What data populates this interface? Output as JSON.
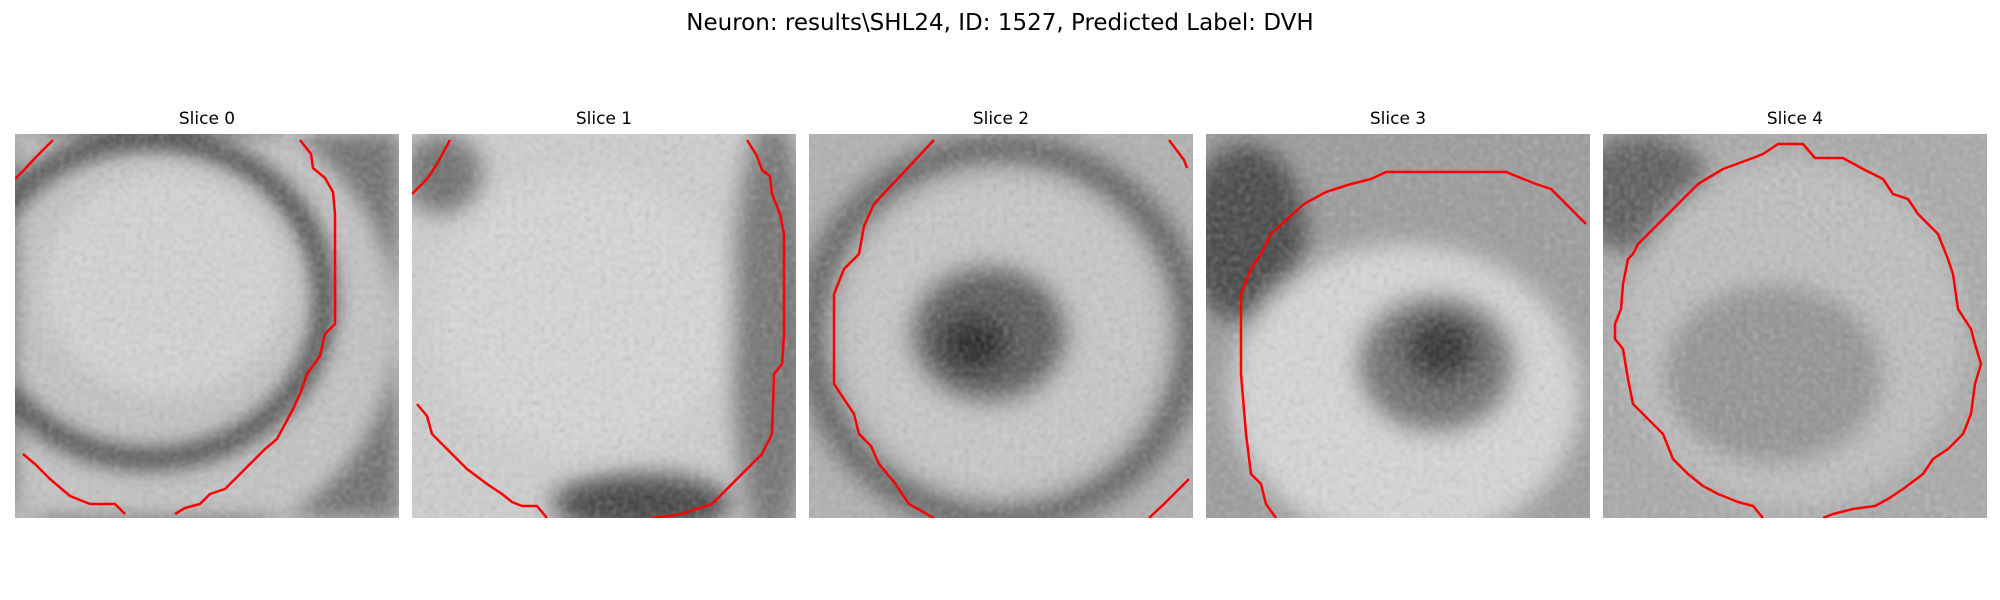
{
  "figure": {
    "title": "Neuron: results\\SHL24, ID: 1527, Predicted Label: DVH"
  },
  "panels": [
    {
      "title": "Slice 0"
    },
    {
      "title": "Slice 1"
    },
    {
      "title": "Slice 2"
    },
    {
      "title": "Slice 3"
    },
    {
      "title": "Slice 4"
    }
  ],
  "colors": {
    "contour": "#ff0000"
  }
}
